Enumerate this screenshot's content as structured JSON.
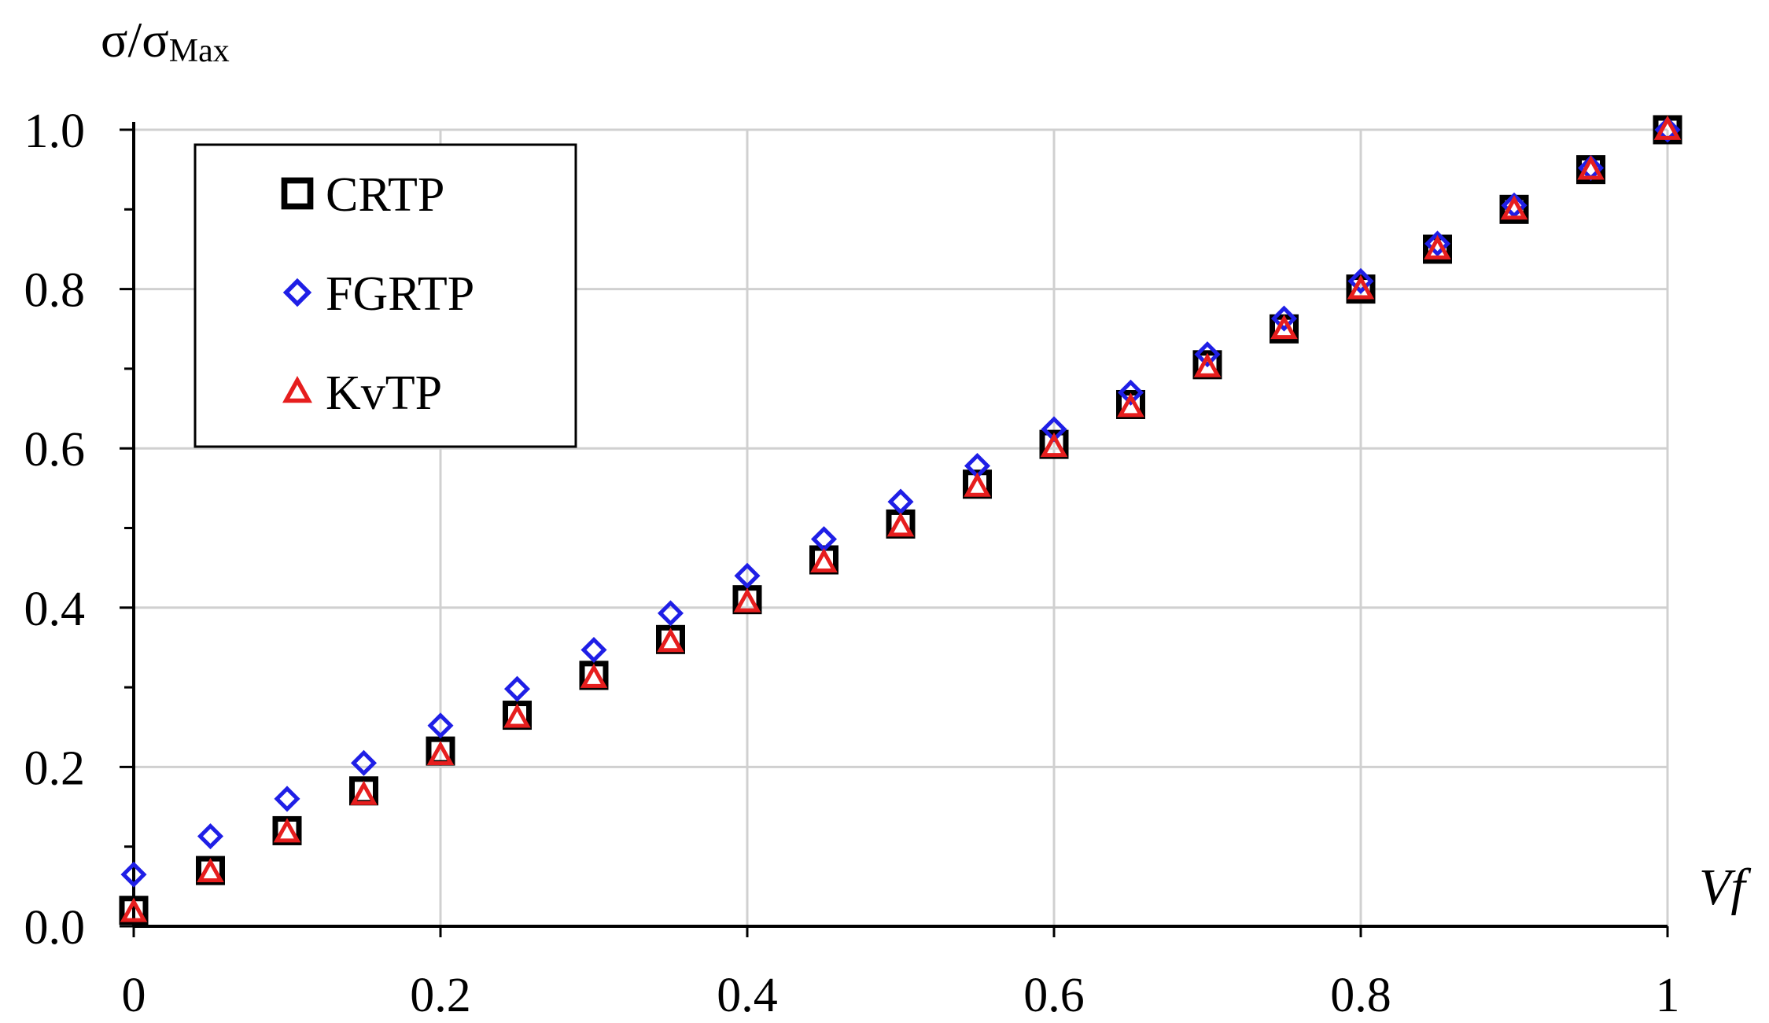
{
  "chart_data": {
    "type": "scatter",
    "title": "",
    "xlabel": "Vf",
    "ylabel": {
      "main": "σ/σ",
      "subscript": "Max"
    },
    "xlim": [
      0,
      1
    ],
    "ylim": [
      0,
      1
    ],
    "x_ticks": [
      "0",
      "0.2",
      "0.4",
      "0.6",
      "0.8",
      "1"
    ],
    "y_ticks": [
      "0.0",
      "0.2",
      "0.4",
      "0.6",
      "0.8",
      "1.0"
    ],
    "grid": true,
    "legend_position": "top-left",
    "x": [
      0,
      0.05,
      0.1,
      0.15,
      0.2,
      0.25,
      0.3,
      0.35,
      0.4,
      0.45,
      0.5,
      0.55,
      0.6,
      0.65,
      0.7,
      0.75,
      0.8,
      0.85,
      0.9,
      0.95,
      1.0
    ],
    "series": [
      {
        "name": "CRTP",
        "marker": "square",
        "color": "#000000",
        "values": [
          0.02,
          0.07,
          0.12,
          0.17,
          0.22,
          0.265,
          0.315,
          0.36,
          0.41,
          0.46,
          0.505,
          0.555,
          0.605,
          0.655,
          0.705,
          0.75,
          0.8,
          0.85,
          0.9,
          0.95,
          1.0
        ]
      },
      {
        "name": "FGRTP",
        "marker": "diamond",
        "color": "#1f1fe6",
        "values": [
          0.065,
          0.113,
          0.16,
          0.205,
          0.252,
          0.298,
          0.347,
          0.393,
          0.44,
          0.486,
          0.533,
          0.578,
          0.624,
          0.67,
          0.718,
          0.763,
          0.81,
          0.857,
          0.905,
          0.952,
          1.0
        ]
      },
      {
        "name": "KvTP",
        "marker": "triangle",
        "color": "#e61e1e",
        "values": [
          0.018,
          0.068,
          0.118,
          0.165,
          0.215,
          0.262,
          0.312,
          0.357,
          0.407,
          0.457,
          0.502,
          0.552,
          0.602,
          0.652,
          0.702,
          0.75,
          0.8,
          0.85,
          0.9,
          0.95,
          1.0
        ]
      }
    ]
  }
}
